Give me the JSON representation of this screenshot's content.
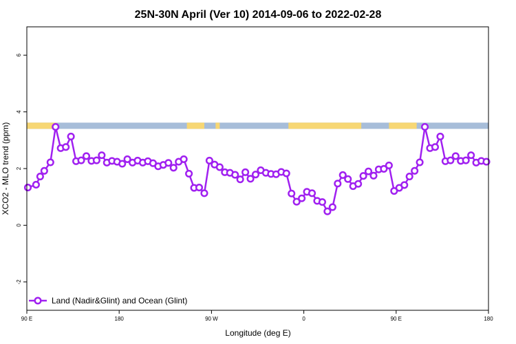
{
  "chart_data": {
    "type": "line",
    "title": "25N-30N April (Ver 10)   2014-09-06 to 2022-02-28",
    "xlabel": "Longitude (deg E)",
    "ylabel": "XCO2 - MLO trend (ppm)",
    "xlim": [
      0,
      450
    ],
    "ylim": [
      -3,
      7
    ],
    "xticks": [
      {
        "value": 0,
        "label": "90 E"
      },
      {
        "value": 90,
        "label": "180"
      },
      {
        "value": 180,
        "label": "90 W"
      },
      {
        "value": 270,
        "label": "0"
      },
      {
        "value": 360,
        "label": "90 E"
      },
      {
        "value": 450,
        "label": "180"
      }
    ],
    "yticks": [
      {
        "value": -2,
        "label": "-2"
      },
      {
        "value": 0,
        "label": "0"
      },
      {
        "value": 2,
        "label": "2"
      },
      {
        "value": 4,
        "label": "4"
      },
      {
        "value": 6,
        "label": "6"
      }
    ],
    "line_color": "#a020f0",
    "land_color": "#f7d774",
    "ocean_color": "#a7bdd9",
    "surface_band": {
      "y_range": [
        3.4,
        3.62
      ],
      "land_segments": [
        [
          0,
          29
        ],
        [
          156,
          173
        ],
        [
          184,
          188
        ],
        [
          255,
          326
        ],
        [
          353,
          380
        ]
      ]
    },
    "legend": {
      "position": "bottom-left",
      "label": "Land (Nadir&Glint) and Ocean (Glint)"
    },
    "series": [
      {
        "name": "Land (Nadir&Glint) and Ocean (Glint)",
        "x": [
          1,
          9,
          13,
          17,
          23,
          28,
          33,
          38,
          43,
          48,
          53,
          58,
          63,
          68,
          73,
          78,
          83,
          88,
          93,
          98,
          103,
          108,
          113,
          118,
          123,
          128,
          133,
          138,
          143,
          148,
          153,
          158,
          163,
          168,
          173,
          178,
          183,
          188,
          193,
          198,
          203,
          208,
          213,
          218,
          223,
          228,
          233,
          238,
          243,
          248,
          253,
          258,
          263,
          268,
          273,
          278,
          283,
          288,
          293,
          298,
          303,
          308,
          313,
          318,
          323,
          328,
          333,
          338,
          343,
          348,
          353,
          358,
          363,
          368,
          373,
          378,
          383,
          388,
          393,
          398,
          403,
          408,
          413,
          418,
          423,
          428,
          433,
          438,
          443,
          448
        ],
        "values": [
          1.33,
          1.43,
          1.72,
          1.92,
          2.22,
          3.47,
          2.72,
          2.76,
          3.13,
          2.26,
          2.29,
          2.44,
          2.27,
          2.29,
          2.47,
          2.21,
          2.27,
          2.24,
          2.17,
          2.33,
          2.21,
          2.28,
          2.21,
          2.26,
          2.19,
          2.08,
          2.13,
          2.2,
          2.03,
          2.24,
          2.33,
          1.82,
          1.32,
          1.33,
          1.13,
          2.28,
          2.14,
          2.05,
          1.87,
          1.85,
          1.78,
          1.62,
          1.87,
          1.64,
          1.79,
          1.94,
          1.85,
          1.81,
          1.8,
          1.88,
          1.83,
          1.12,
          0.83,
          0.95,
          1.18,
          1.13,
          0.86,
          0.82,
          0.49,
          0.64,
          1.47,
          1.77,
          1.63,
          1.38,
          1.46,
          1.74,
          1.9,
          1.75,
          1.97,
          1.99,
          2.11,
          1.21,
          1.32,
          1.42,
          1.72,
          1.92,
          2.22,
          3.47,
          2.72,
          2.76,
          3.13,
          2.26,
          2.29,
          2.44,
          2.27,
          2.29,
          2.47,
          2.21,
          2.27,
          2.24
        ]
      }
    ]
  }
}
